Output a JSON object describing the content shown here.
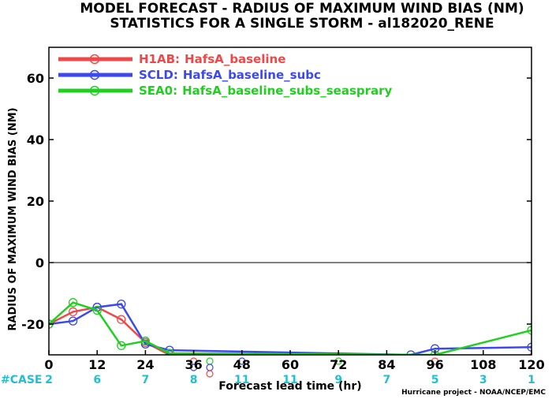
{
  "chart_data": {
    "type": "line",
    "title": "MODEL FORECAST - RADIUS OF MAXIMUM WIND BIAS (NM)",
    "subtitle": "STATISTICS FOR A SINGLE STORM - al182020_RENE",
    "xlabel": "Forecast lead time (hr)",
    "ylabel": "RADIUS OF MAXIMUM WIND BIAS (NM)",
    "xlim": [
      0,
      120
    ],
    "ylim": [
      -30,
      70
    ],
    "x_ticks": [
      0,
      12,
      24,
      36,
      48,
      60,
      72,
      84,
      96,
      108,
      120
    ],
    "y_ticks": [
      -20,
      0,
      20,
      40,
      60
    ],
    "zero_line": true,
    "legend_position": "top-left",
    "case_label": "#CASE",
    "case_counts": [
      "2",
      "6",
      "7",
      "8",
      "11",
      "11",
      "9",
      "7",
      "5",
      "3",
      "1"
    ],
    "credit": "Hurricane project - NOAA/NCEP/EMC",
    "series": [
      {
        "code": "H1AB:",
        "name": "HafsA_baseline",
        "color": "#f04848",
        "x": [
          0,
          6,
          12,
          18,
          24,
          30,
          120
        ],
        "y": [
          -20,
          -16,
          -14.5,
          -18.5,
          -26,
          -30,
          -31
        ]
      },
      {
        "code": "SCLD:",
        "name": "HafsA_baseline_subc",
        "color": "#3c48f0",
        "x": [
          0,
          6,
          12,
          18,
          24,
          30,
          90,
          96,
          120
        ],
        "y": [
          -20,
          -19,
          -14.5,
          -13.5,
          -26.5,
          -28.5,
          -30,
          -28,
          -27.5
        ]
      },
      {
        "code": "SEA0:",
        "name": "HafsA_baseline_subs_seasprary",
        "color": "#20d020",
        "x": [
          0,
          6,
          12,
          18,
          24,
          30,
          96,
          120
        ],
        "y": [
          -20,
          -13,
          -15.5,
          -27,
          -25.5,
          -29.5,
          -30,
          -22
        ]
      }
    ],
    "below_axis_markers": [
      {
        "x": 36,
        "color": "#f04848"
      },
      {
        "x": 36,
        "color": "#3c48f0"
      },
      {
        "x": 40,
        "color": "#20d020"
      },
      {
        "x": 40,
        "color": "#3c48f0"
      },
      {
        "x": 40,
        "color": "#f04848"
      },
      {
        "x": 48,
        "color": "#3c48f0"
      },
      {
        "x": 72,
        "color": "#20d020"
      },
      {
        "x": 96,
        "color": "#f04848"
      }
    ]
  }
}
